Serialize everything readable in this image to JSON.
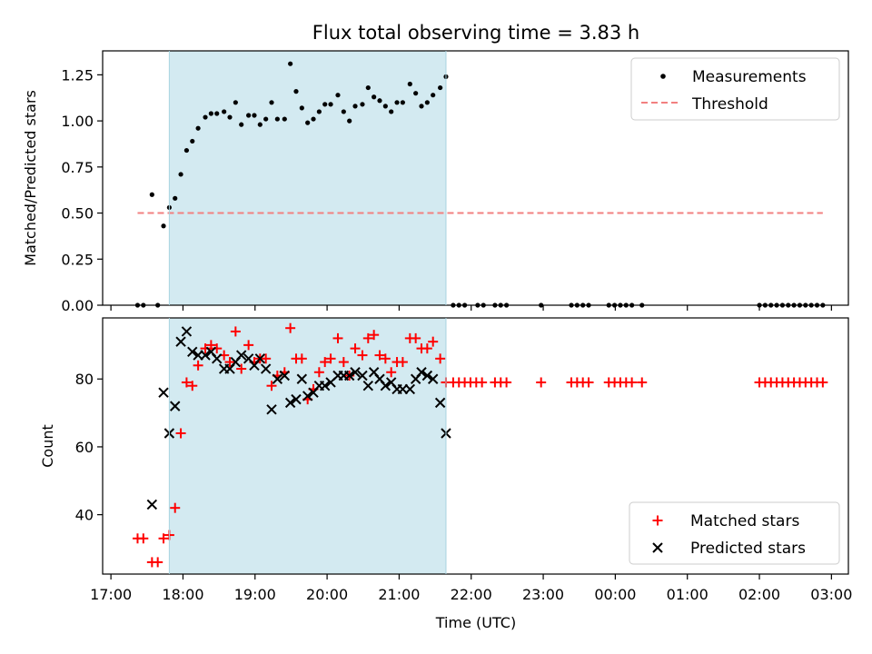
{
  "figure": {
    "title": "Flux total observing time = 3.83 h",
    "xlabel": "Time (UTC)"
  },
  "colors": {
    "shade": "#d3eaf1",
    "shade_edge": "#a8d4e0",
    "measurement": "#000000",
    "threshold": "#f28080",
    "matched": "#ff0000",
    "predicted": "#000000"
  },
  "chart_data": [
    {
      "type": "scatter",
      "panel": "top",
      "title": "Flux total observing time = 3.83 h",
      "ylabel": "Matched/Predicted stars",
      "xlabel": "",
      "x_unit": "hours since 17:00 UTC",
      "xlim": [
        16.885,
        27.235
      ],
      "ylim": [
        0.0,
        1.38
      ],
      "yticks": [
        0.0,
        0.25,
        0.5,
        0.75,
        1.0,
        1.25
      ],
      "ytick_labels": [
        "0.00",
        "0.25",
        "0.50",
        "0.75",
        "1.00",
        "1.25"
      ],
      "shaded_span": [
        17.81,
        21.65
      ],
      "legend_position": "upper right",
      "series": [
        {
          "name": "Measurements",
          "marker": "dot",
          "points": [
            [
              17.37,
              0.0
            ],
            [
              17.45,
              0.0
            ],
            [
              17.57,
              0.6
            ],
            [
              17.65,
              0.0
            ],
            [
              17.73,
              0.43
            ],
            [
              17.81,
              0.53
            ],
            [
              17.89,
              0.58
            ],
            [
              17.97,
              0.71
            ],
            [
              18.05,
              0.84
            ],
            [
              18.13,
              0.89
            ],
            [
              18.21,
              0.96
            ],
            [
              18.31,
              1.02
            ],
            [
              18.39,
              1.04
            ],
            [
              18.47,
              1.04
            ],
            [
              18.57,
              1.05
            ],
            [
              18.65,
              1.02
            ],
            [
              18.73,
              1.1
            ],
            [
              18.81,
              0.98
            ],
            [
              18.91,
              1.03
            ],
            [
              18.99,
              1.03
            ],
            [
              19.07,
              0.98
            ],
            [
              19.15,
              1.01
            ],
            [
              19.23,
              1.1
            ],
            [
              19.31,
              1.01
            ],
            [
              19.41,
              1.01
            ],
            [
              19.49,
              1.31
            ],
            [
              19.57,
              1.16
            ],
            [
              19.65,
              1.07
            ],
            [
              19.73,
              0.99
            ],
            [
              19.81,
              1.01
            ],
            [
              19.89,
              1.05
            ],
            [
              19.97,
              1.09
            ],
            [
              20.05,
              1.09
            ],
            [
              20.15,
              1.14
            ],
            [
              20.23,
              1.05
            ],
            [
              20.31,
              1.0
            ],
            [
              20.39,
              1.08
            ],
            [
              20.49,
              1.09
            ],
            [
              20.57,
              1.18
            ],
            [
              20.65,
              1.13
            ],
            [
              20.73,
              1.11
            ],
            [
              20.81,
              1.08
            ],
            [
              20.89,
              1.05
            ],
            [
              20.97,
              1.1
            ],
            [
              21.05,
              1.1
            ],
            [
              21.15,
              1.2
            ],
            [
              21.23,
              1.15
            ],
            [
              21.31,
              1.08
            ],
            [
              21.39,
              1.1
            ],
            [
              21.47,
              1.14
            ],
            [
              21.57,
              1.18
            ],
            [
              21.65,
              1.24
            ],
            [
              21.75,
              0.0
            ],
            [
              21.83,
              0.0
            ],
            [
              21.91,
              0.0
            ],
            [
              22.09,
              0.0
            ],
            [
              22.17,
              0.0
            ],
            [
              22.33,
              0.0
            ],
            [
              22.41,
              0.0
            ],
            [
              22.49,
              0.0
            ],
            [
              22.97,
              0.0
            ],
            [
              23.39,
              0.0
            ],
            [
              23.47,
              0.0
            ],
            [
              23.55,
              0.0
            ],
            [
              23.63,
              0.0
            ],
            [
              23.91,
              0.0
            ],
            [
              23.99,
              0.0
            ],
            [
              24.07,
              0.0
            ],
            [
              24.15,
              0.0
            ],
            [
              24.23,
              0.0
            ],
            [
              24.37,
              0.0
            ],
            [
              26.0,
              0.0
            ],
            [
              26.08,
              0.0
            ],
            [
              26.16,
              0.0
            ],
            [
              26.24,
              0.0
            ],
            [
              26.32,
              0.0
            ],
            [
              26.4,
              0.0
            ],
            [
              26.48,
              0.0
            ],
            [
              26.56,
              0.0
            ],
            [
              26.64,
              0.0
            ],
            [
              26.72,
              0.0
            ],
            [
              26.8,
              0.0
            ],
            [
              26.88,
              0.0
            ]
          ]
        },
        {
          "name": "Threshold",
          "style": "dashed-line",
          "points": [
            [
              17.37,
              0.5
            ],
            [
              26.88,
              0.5
            ]
          ]
        }
      ]
    },
    {
      "type": "scatter",
      "panel": "bottom",
      "ylabel": "Count",
      "xlabel": "Time (UTC)",
      "x_unit": "hours since 17:00 UTC",
      "xlim": [
        16.885,
        27.235
      ],
      "ylim": [
        22.5,
        98.0
      ],
      "yticks": [
        40,
        60,
        80
      ],
      "ytick_labels": [
        "40",
        "60",
        "80"
      ],
      "xticks": [
        17,
        18,
        19,
        20,
        21,
        22,
        23,
        24,
        25,
        26,
        27
      ],
      "xtick_labels": [
        "17:00",
        "18:00",
        "19:00",
        "20:00",
        "21:00",
        "22:00",
        "23:00",
        "00:00",
        "01:00",
        "02:00",
        "03:00"
      ],
      "shaded_span": [
        17.81,
        21.65
      ],
      "legend_position": "lower right",
      "series": [
        {
          "name": "Matched stars",
          "marker": "plus",
          "points": [
            [
              17.37,
              33
            ],
            [
              17.45,
              33
            ],
            [
              17.57,
              26
            ],
            [
              17.65,
              26
            ],
            [
              17.73,
              33
            ],
            [
              17.81,
              34
            ],
            [
              17.89,
              42
            ],
            [
              17.97,
              64
            ],
            [
              18.05,
              79
            ],
            [
              18.13,
              78
            ],
            [
              18.21,
              84
            ],
            [
              18.31,
              89
            ],
            [
              18.39,
              90
            ],
            [
              18.47,
              89
            ],
            [
              18.57,
              87
            ],
            [
              18.65,
              85
            ],
            [
              18.73,
              94
            ],
            [
              18.81,
              83
            ],
            [
              18.91,
              90
            ],
            [
              18.99,
              85
            ],
            [
              19.07,
              86
            ],
            [
              19.15,
              86
            ],
            [
              19.23,
              78
            ],
            [
              19.31,
              81
            ],
            [
              19.41,
              82
            ],
            [
              19.49,
              95
            ],
            [
              19.57,
              86
            ],
            [
              19.65,
              86
            ],
            [
              19.73,
              74
            ],
            [
              19.81,
              77
            ],
            [
              19.89,
              82
            ],
            [
              19.97,
              85
            ],
            [
              20.05,
              86
            ],
            [
              20.15,
              92
            ],
            [
              20.23,
              85
            ],
            [
              20.31,
              81
            ],
            [
              20.39,
              89
            ],
            [
              20.49,
              87
            ],
            [
              20.57,
              92
            ],
            [
              20.65,
              93
            ],
            [
              20.73,
              87
            ],
            [
              20.81,
              86
            ],
            [
              20.89,
              82
            ],
            [
              20.97,
              85
            ],
            [
              21.05,
              85
            ],
            [
              21.15,
              92
            ],
            [
              21.23,
              92
            ],
            [
              21.31,
              89
            ],
            [
              21.39,
              89
            ],
            [
              21.47,
              91
            ],
            [
              21.57,
              86
            ],
            [
              21.65,
              79
            ],
            [
              21.75,
              79
            ],
            [
              21.83,
              79
            ],
            [
              21.91,
              79
            ],
            [
              21.99,
              79
            ],
            [
              22.07,
              79
            ],
            [
              22.15,
              79
            ],
            [
              22.33,
              79
            ],
            [
              22.41,
              79
            ],
            [
              22.49,
              79
            ],
            [
              22.97,
              79
            ],
            [
              23.39,
              79
            ],
            [
              23.47,
              79
            ],
            [
              23.55,
              79
            ],
            [
              23.63,
              79
            ],
            [
              23.91,
              79
            ],
            [
              23.99,
              79
            ],
            [
              24.07,
              79
            ],
            [
              24.15,
              79
            ],
            [
              24.23,
              79
            ],
            [
              24.37,
              79
            ],
            [
              26.0,
              79
            ],
            [
              26.08,
              79
            ],
            [
              26.16,
              79
            ],
            [
              26.24,
              79
            ],
            [
              26.32,
              79
            ],
            [
              26.4,
              79
            ],
            [
              26.48,
              79
            ],
            [
              26.56,
              79
            ],
            [
              26.64,
              79
            ],
            [
              26.72,
              79
            ],
            [
              26.8,
              79
            ],
            [
              26.88,
              79
            ]
          ]
        },
        {
          "name": "Predicted stars",
          "marker": "x",
          "points": [
            [
              17.57,
              43
            ],
            [
              17.73,
              76
            ],
            [
              17.81,
              64
            ],
            [
              17.89,
              72
            ],
            [
              17.97,
              91
            ],
            [
              18.05,
              94
            ],
            [
              18.13,
              88
            ],
            [
              18.21,
              87
            ],
            [
              18.31,
              87
            ],
            [
              18.39,
              88
            ],
            [
              18.47,
              86
            ],
            [
              18.57,
              83
            ],
            [
              18.65,
              83
            ],
            [
              18.73,
              85
            ],
            [
              18.81,
              87
            ],
            [
              18.91,
              86
            ],
            [
              18.99,
              84
            ],
            [
              19.07,
              86
            ],
            [
              19.15,
              83
            ],
            [
              19.23,
              71
            ],
            [
              19.31,
              80
            ],
            [
              19.41,
              81
            ],
            [
              19.49,
              73
            ],
            [
              19.57,
              74
            ],
            [
              19.65,
              80
            ],
            [
              19.73,
              75
            ],
            [
              19.81,
              76
            ],
            [
              19.89,
              78
            ],
            [
              19.97,
              78
            ],
            [
              20.05,
              79
            ],
            [
              20.15,
              81
            ],
            [
              20.23,
              81
            ],
            [
              20.31,
              81
            ],
            [
              20.39,
              82
            ],
            [
              20.49,
              81
            ],
            [
              20.57,
              78
            ],
            [
              20.65,
              82
            ],
            [
              20.73,
              80
            ],
            [
              20.81,
              78
            ],
            [
              20.89,
              79
            ],
            [
              20.97,
              77
            ],
            [
              21.05,
              77
            ],
            [
              21.15,
              77
            ],
            [
              21.23,
              80
            ],
            [
              21.31,
              82
            ],
            [
              21.39,
              81
            ],
            [
              21.47,
              80
            ],
            [
              21.57,
              73
            ],
            [
              21.65,
              64
            ]
          ]
        }
      ]
    }
  ]
}
